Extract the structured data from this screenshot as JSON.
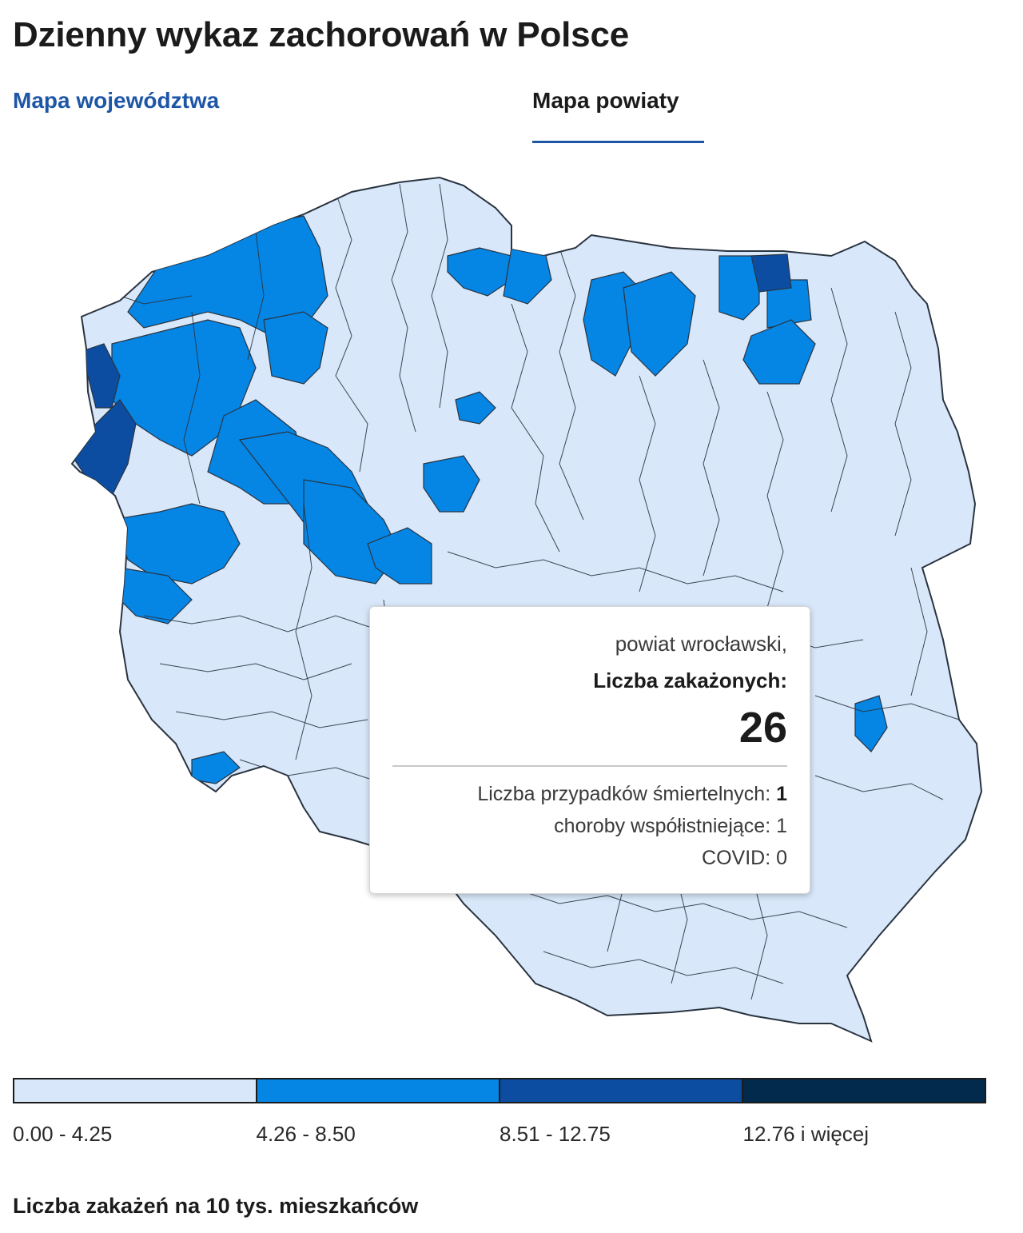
{
  "title": "Dzienny wykaz zachorowań w Polsce",
  "tabs": [
    {
      "label": "Mapa województwa",
      "active": false
    },
    {
      "label": "Mapa powiaty",
      "active": true
    }
  ],
  "colors": {
    "accent": "#1e56a6",
    "text": "#1b1b1b",
    "border": "#2a3440"
  },
  "tooltip": {
    "name": "powiat wrocławski,",
    "label": "Liczba zakażonych:",
    "value": "26",
    "deaths_label": "Liczba przypadków śmiertelnych: ",
    "deaths_value": "1",
    "comorbid": "choroby współistniejące: 1",
    "covid": "COVID: 0"
  },
  "legend": {
    "items": [
      {
        "label": "0.00 - 4.25",
        "color": "#d8e8fa"
      },
      {
        "label": "4.26 - 8.50",
        "color": "#0585e4"
      },
      {
        "label": "8.51 - 12.75",
        "color": "#0c4da2"
      },
      {
        "label": "12.76 i więcej",
        "color": "#022a4c"
      }
    ],
    "caption": "Liczba zakażeń na 10 tys. mieszkańców"
  },
  "map": {
    "metric": "Liczba zakażeń na 10 tys. mieszkańców",
    "highlighted_regions_class": [
      "4.26 - 8.50",
      "8.51 - 12.75"
    ]
  }
}
